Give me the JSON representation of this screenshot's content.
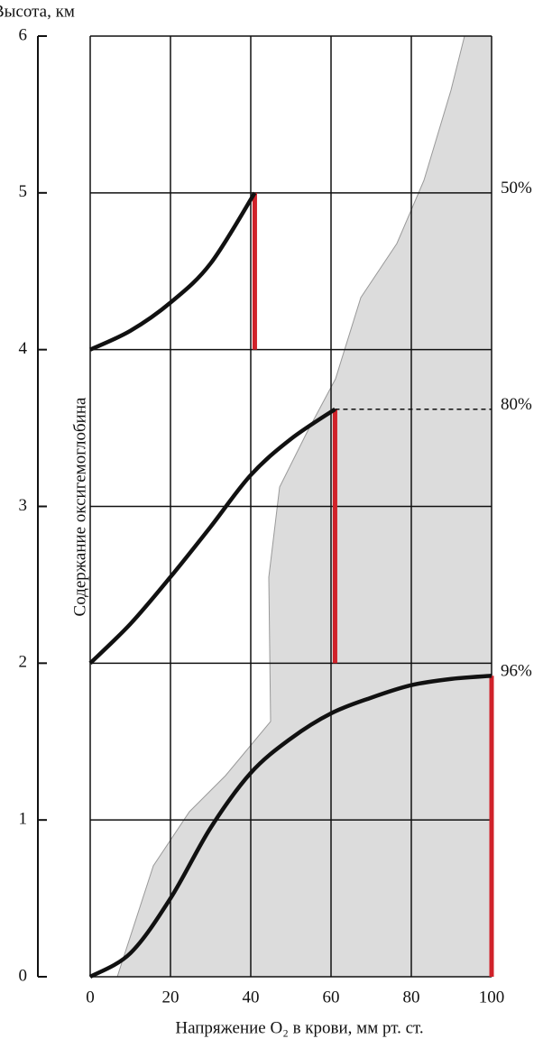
{
  "chart_data": {
    "type": "line",
    "y_label": "Высота, км",
    "annotation": "Содержание оксигемоглобина",
    "x_label": "Напряжение O₂ в крови, мм рт. ст.",
    "xlim": [
      0,
      100
    ],
    "xticks": [
      0,
      20,
      40,
      60,
      80,
      100
    ],
    "ylim": [
      0,
      6
    ],
    "yticks": [
      0,
      1,
      2,
      3,
      4,
      5,
      6
    ],
    "grid": true,
    "drop_color": "#d0222a",
    "series": [
      {
        "name": "96%",
        "color": "#111111",
        "dashed": false,
        "x": [
          0,
          10,
          20,
          30,
          40,
          50,
          60,
          70,
          80,
          90,
          100
        ],
        "values": [
          0,
          0.15,
          0.5,
          0.95,
          1.3,
          1.52,
          1.68,
          1.78,
          1.86,
          1.9,
          1.92
        ]
      },
      {
        "name": "80%",
        "color": "#111111",
        "dashed": true,
        "x": [
          0,
          10,
          20,
          30,
          40,
          50,
          61
        ],
        "values": [
          2,
          2.25,
          2.55,
          2.87,
          3.2,
          3.43,
          3.62
        ]
      },
      {
        "name": "50%",
        "color": "#111111",
        "dashed": false,
        "x": [
          0,
          10,
          20,
          30,
          41
        ],
        "values": [
          4,
          4.12,
          4.3,
          4.55,
          5
        ]
      }
    ]
  }
}
